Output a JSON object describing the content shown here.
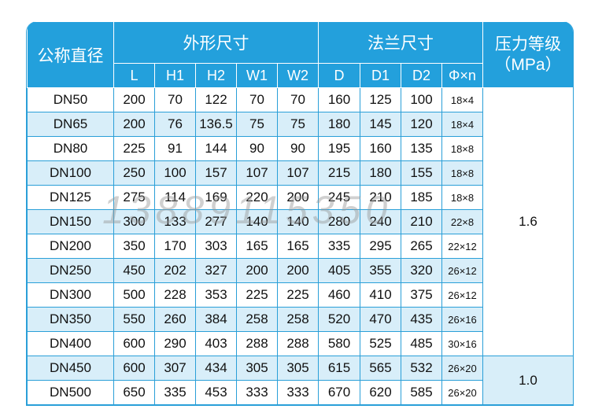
{
  "header": {
    "nominal": "公称直径",
    "outer": "外形尺寸",
    "flange": "法兰尺寸",
    "pressure": "压力等级",
    "pressure_unit": "（MPa）",
    "cols": [
      "L",
      "H1",
      "H2",
      "W1",
      "W2",
      "D",
      "D1",
      "D2",
      "Φ×n"
    ]
  },
  "rows": [
    [
      "DN50",
      "200",
      "70",
      "122",
      "70",
      "70",
      "160",
      "125",
      "100",
      "18×4"
    ],
    [
      "DN65",
      "200",
      "76",
      "136.5",
      "75",
      "75",
      "180",
      "145",
      "120",
      "18×4"
    ],
    [
      "DN80",
      "225",
      "91",
      "144",
      "90",
      "90",
      "195",
      "160",
      "135",
      "18×8"
    ],
    [
      "DN100",
      "250",
      "100",
      "157",
      "107",
      "107",
      "215",
      "180",
      "155",
      "18×8"
    ],
    [
      "DN125",
      "275",
      "114",
      "169",
      "220",
      "200",
      "245",
      "210",
      "185",
      "18×8"
    ],
    [
      "DN150",
      "300",
      "133",
      "277",
      "140",
      "140",
      "280",
      "240",
      "210",
      "22×8"
    ],
    [
      "DN200",
      "350",
      "170",
      "303",
      "165",
      "165",
      "335",
      "295",
      "265",
      "22×12"
    ],
    [
      "DN250",
      "450",
      "202",
      "327",
      "200",
      "200",
      "405",
      "355",
      "320",
      "26×12"
    ],
    [
      "DN300",
      "500",
      "228",
      "353",
      "225",
      "225",
      "460",
      "410",
      "375",
      "26×12"
    ],
    [
      "DN350",
      "550",
      "260",
      "384",
      "258",
      "258",
      "520",
      "470",
      "435",
      "26×16"
    ],
    [
      "DN400",
      "600",
      "290",
      "403",
      "288",
      "288",
      "580",
      "525",
      "485",
      "30×16"
    ],
    [
      "DN450",
      "600",
      "307",
      "434",
      "305",
      "305",
      "615",
      "565",
      "532",
      "26×20"
    ],
    [
      "DN500",
      "650",
      "335",
      "453",
      "333",
      "333",
      "670",
      "620",
      "585",
      "26×20"
    ]
  ],
  "pressure_values": [
    "1.6",
    "1.0"
  ],
  "watermark": "13889115350"
}
